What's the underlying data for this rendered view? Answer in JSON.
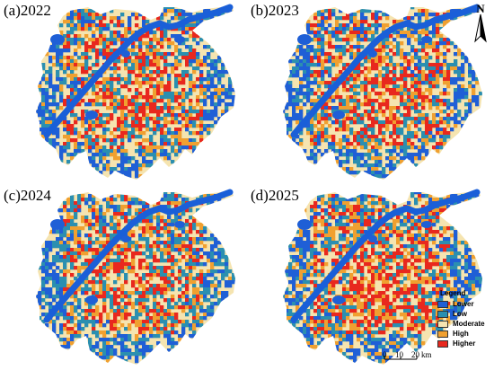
{
  "panels": [
    {
      "title": "(a)2022",
      "seed": 11,
      "bias": [
        0.18,
        0.2,
        0.3,
        0.18,
        0.14
      ]
    },
    {
      "title": "(b)2023",
      "seed": 23,
      "bias": [
        0.16,
        0.2,
        0.32,
        0.18,
        0.14
      ]
    },
    {
      "title": "(c)2024",
      "seed": 37,
      "bias": [
        0.14,
        0.26,
        0.3,
        0.18,
        0.12
      ]
    },
    {
      "title": "(d)2025",
      "seed": 53,
      "bias": [
        0.14,
        0.2,
        0.28,
        0.2,
        0.18
      ]
    }
  ],
  "north_arrow": {
    "label": "N"
  },
  "legend": {
    "title": "Legend",
    "items": [
      {
        "label": "Lower",
        "color": "#1f5fd6"
      },
      {
        "label": "Low",
        "color": "#2b8fb0"
      },
      {
        "label": "Moderate",
        "color": "#f5e4b0"
      },
      {
        "label": "High",
        "color": "#f0a030"
      },
      {
        "label": "Higher",
        "color": "#e8281e"
      }
    ]
  },
  "scale_bar": {
    "labels": [
      "0",
      "10",
      "20"
    ],
    "unit": "km"
  },
  "colors": {
    "river": "#1a5fd8"
  }
}
